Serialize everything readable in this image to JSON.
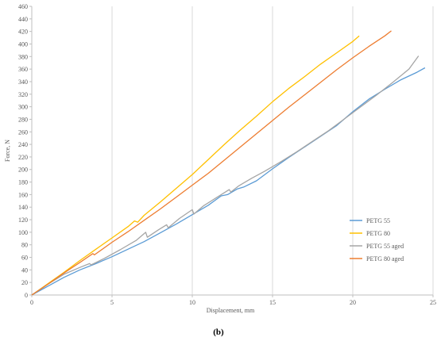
{
  "chart_data": {
    "type": "line",
    "title": "",
    "xlabel": "Displacement, mm",
    "ylabel": "Force, N",
    "caption": "(b)",
    "xlim": [
      0,
      25
    ],
    "ylim": [
      0,
      460
    ],
    "xticks": [
      0,
      5,
      10,
      15,
      20,
      25
    ],
    "yticks": [
      0,
      20,
      40,
      60,
      80,
      100,
      120,
      140,
      160,
      180,
      200,
      220,
      240,
      260,
      280,
      300,
      320,
      340,
      360,
      380,
      400,
      420,
      440,
      460
    ],
    "grid": "vertical",
    "legend_position": "bottom-right",
    "series": [
      {
        "name": "PETG 55",
        "color": "#5B9BD5",
        "points": [
          [
            0,
            0
          ],
          [
            1,
            14
          ],
          [
            2,
            28
          ],
          [
            3,
            40
          ],
          [
            4,
            50
          ],
          [
            5,
            61
          ],
          [
            6,
            73
          ],
          [
            7,
            85
          ],
          [
            8,
            99
          ],
          [
            9,
            113
          ],
          [
            10,
            128
          ],
          [
            11,
            143
          ],
          [
            11.8,
            158
          ],
          [
            12.2,
            160
          ],
          [
            12.8,
            169
          ],
          [
            13.2,
            172
          ],
          [
            14,
            182
          ],
          [
            15,
            201
          ],
          [
            16,
            219
          ],
          [
            17,
            236
          ],
          [
            18,
            253
          ],
          [
            19,
            270
          ],
          [
            20,
            292
          ],
          [
            21,
            312
          ],
          [
            22,
            328
          ],
          [
            23,
            343
          ],
          [
            24,
            355
          ],
          [
            24.5,
            362
          ]
        ]
      },
      {
        "name": "PETG 80",
        "color": "#FFC000",
        "points": [
          [
            0,
            0
          ],
          [
            1,
            18
          ],
          [
            2,
            36
          ],
          [
            3,
            55
          ],
          [
            4,
            73
          ],
          [
            5,
            91
          ],
          [
            6,
            109
          ],
          [
            6.4,
            118
          ],
          [
            6.6,
            116
          ],
          [
            7,
            127
          ],
          [
            8,
            148
          ],
          [
            9,
            170
          ],
          [
            10,
            192
          ],
          [
            11,
            216
          ],
          [
            12,
            240
          ],
          [
            13,
            263
          ],
          [
            14,
            285
          ],
          [
            15,
            308
          ],
          [
            16,
            329
          ],
          [
            17,
            348
          ],
          [
            18,
            368
          ],
          [
            19,
            386
          ],
          [
            20,
            404
          ],
          [
            20.4,
            413
          ]
        ]
      },
      {
        "name": "PETG 55 aged",
        "color": "#A5A5A5",
        "points": [
          [
            0,
            0
          ],
          [
            1,
            17
          ],
          [
            2,
            33
          ],
          [
            3,
            44
          ],
          [
            3.6,
            50
          ],
          [
            3.7,
            48
          ],
          [
            4.5,
            58
          ],
          [
            5.5,
            72
          ],
          [
            6.5,
            87
          ],
          [
            7.1,
            100
          ],
          [
            7.2,
            92
          ],
          [
            7.9,
            104
          ],
          [
            8.4,
            112
          ],
          [
            8.5,
            107
          ],
          [
            9.2,
            122
          ],
          [
            10,
            136
          ],
          [
            10.1,
            129
          ],
          [
            10.7,
            142
          ],
          [
            11.5,
            155
          ],
          [
            12.3,
            168
          ],
          [
            12.4,
            164
          ],
          [
            12.9,
            174
          ],
          [
            13.7,
            186
          ],
          [
            14.5,
            197
          ],
          [
            15.5,
            212
          ],
          [
            16.5,
            228
          ],
          [
            17.5,
            245
          ],
          [
            18.5,
            262
          ],
          [
            19.5,
            281
          ],
          [
            20.5,
            300
          ],
          [
            21.5,
            319
          ],
          [
            22.5,
            339
          ],
          [
            23.5,
            360
          ],
          [
            24.1,
            381
          ]
        ]
      },
      {
        "name": "PETG 80 aged",
        "color": "#ED7D31",
        "points": [
          [
            0,
            0
          ],
          [
            1,
            17
          ],
          [
            2,
            35
          ],
          [
            3,
            52
          ],
          [
            3.8,
            66
          ],
          [
            3.9,
            64
          ],
          [
            5,
            84
          ],
          [
            6,
            101
          ],
          [
            7,
            119
          ],
          [
            8,
            137
          ],
          [
            9,
            156
          ],
          [
            10,
            175
          ],
          [
            11,
            194
          ],
          [
            12,
            215
          ],
          [
            13,
            236
          ],
          [
            14,
            257
          ],
          [
            15,
            278
          ],
          [
            16,
            299
          ],
          [
            17,
            319
          ],
          [
            18,
            339
          ],
          [
            19,
            359
          ],
          [
            20,
            378
          ],
          [
            21,
            396
          ],
          [
            22,
            413
          ],
          [
            22.4,
            421
          ]
        ]
      }
    ]
  }
}
